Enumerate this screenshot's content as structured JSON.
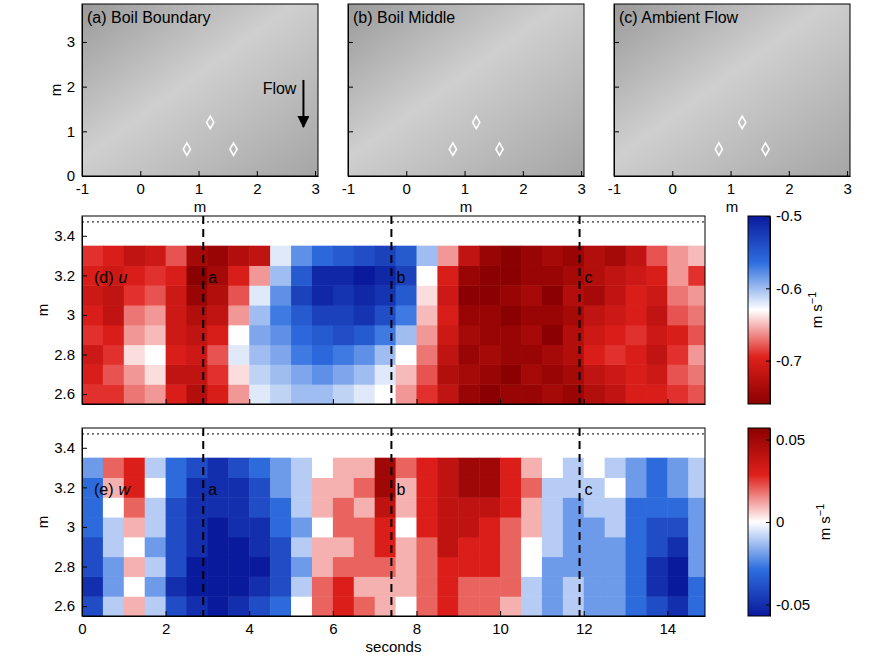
{
  "chart_data": [
    {
      "type": "image",
      "title": "(a) Boil Boundary",
      "xlabel": "m",
      "ylabel": "m",
      "xlim": [
        -1,
        3.05
      ],
      "xticks": [
        -1,
        0,
        1,
        2,
        3
      ],
      "ylim": [
        0,
        3.85
      ],
      "yticks": [
        0,
        1,
        2,
        3
      ],
      "points": {
        "x": [
          1.2,
          0.8,
          1.6
        ],
        "y": [
          1.2,
          0.6,
          0.6
        ],
        "marker": "diamond",
        "color": "#ffffff"
      },
      "annotations": [
        {
          "text": "Flow",
          "x": 2.8,
          "y_start": 2.15,
          "y_end": 1.1
        }
      ]
    },
    {
      "type": "image",
      "title": "(b) Boil Middle",
      "xlabel": "m",
      "xlim": [
        -1,
        3.05
      ],
      "xticks": [
        -1,
        0,
        1,
        2,
        3
      ],
      "ylim": [
        0,
        3.85
      ],
      "yticks": [
        0,
        1,
        2,
        3
      ],
      "tick_labels": "x",
      "points": {
        "x": [
          1.2,
          0.8,
          1.6
        ],
        "y": [
          1.2,
          0.6,
          0.6
        ],
        "marker": "diamond",
        "color": "#ffffff"
      }
    },
    {
      "type": "image",
      "title": "(c) Ambient Flow",
      "xlabel": "m",
      "xlim": [
        -1,
        3.05
      ],
      "xticks": [
        -1,
        0,
        1,
        2,
        3
      ],
      "ylim": [
        0,
        3.85
      ],
      "yticks": [
        0,
        1,
        2,
        3
      ],
      "tick_labels": "x",
      "points": {
        "x": [
          1.2,
          0.8,
          1.6
        ],
        "y": [
          1.2,
          0.6,
          0.6
        ],
        "marker": "diamond",
        "color": "#ffffff"
      }
    },
    {
      "type": "heatmap",
      "title": "(d)",
      "variable": "u",
      "ylabel": "m",
      "tick_labels": "y",
      "xlim": [
        0,
        14.9
      ],
      "xticks": [
        0,
        2,
        4,
        6,
        8,
        10,
        12,
        14
      ],
      "ylim": [
        2.55,
        3.5
      ],
      "yticks": [
        2.6,
        2.8,
        3,
        3.2,
        3.4
      ],
      "x": [
        0.25,
        0.75,
        1.25,
        1.75,
        2.25,
        2.75,
        3.25,
        3.75,
        4.25,
        4.75,
        5.25,
        5.75,
        6.25,
        6.75,
        7.25,
        7.75,
        8.25,
        8.75,
        9.25,
        9.75,
        10.25,
        10.75,
        11.25,
        11.75,
        12.25,
        12.75,
        13.25,
        13.75,
        14.25,
        14.75
      ],
      "y": [
        2.6,
        2.7,
        2.8,
        2.9,
        3.0,
        3.1,
        3.2,
        3.3
      ],
      "z": [
        [
          -0.69,
          -0.69,
          -0.67,
          -0.66,
          -0.7,
          -0.73,
          -0.7,
          -0.66,
          -0.62,
          -0.61,
          -0.6,
          -0.6,
          -0.61,
          -0.62,
          -0.63,
          -0.66,
          -0.69,
          -0.72,
          -0.75,
          -0.76,
          -0.75,
          -0.75,
          -0.74,
          -0.75,
          -0.73,
          -0.72,
          -0.7,
          -0.7,
          -0.69,
          -0.68
        ],
        [
          -0.7,
          -0.68,
          -0.66,
          -0.64,
          -0.72,
          -0.72,
          -0.69,
          -0.64,
          -0.61,
          -0.6,
          -0.59,
          -0.58,
          -0.59,
          -0.6,
          -0.62,
          -0.65,
          -0.68,
          -0.73,
          -0.74,
          -0.75,
          -0.76,
          -0.74,
          -0.75,
          -0.74,
          -0.72,
          -0.71,
          -0.7,
          -0.71,
          -0.68,
          -0.67
        ],
        [
          -0.71,
          -0.69,
          -0.64,
          -0.63,
          -0.7,
          -0.71,
          -0.68,
          -0.62,
          -0.6,
          -0.59,
          -0.57,
          -0.56,
          -0.57,
          -0.58,
          -0.6,
          -0.63,
          -0.67,
          -0.72,
          -0.75,
          -0.74,
          -0.75,
          -0.75,
          -0.74,
          -0.73,
          -0.7,
          -0.69,
          -0.7,
          -0.72,
          -0.69,
          -0.66
        ],
        [
          -0.69,
          -0.7,
          -0.66,
          -0.65,
          -0.71,
          -0.72,
          -0.7,
          -0.63,
          -0.59,
          -0.58,
          -0.56,
          -0.55,
          -0.54,
          -0.55,
          -0.57,
          -0.6,
          -0.66,
          -0.71,
          -0.74,
          -0.75,
          -0.75,
          -0.74,
          -0.76,
          -0.73,
          -0.71,
          -0.7,
          -0.69,
          -0.71,
          -0.7,
          -0.68
        ],
        [
          -0.7,
          -0.72,
          -0.67,
          -0.66,
          -0.71,
          -0.73,
          -0.72,
          -0.66,
          -0.6,
          -0.57,
          -0.55,
          -0.53,
          -0.53,
          -0.52,
          -0.54,
          -0.57,
          -0.65,
          -0.7,
          -0.75,
          -0.75,
          -0.76,
          -0.75,
          -0.75,
          -0.74,
          -0.72,
          -0.71,
          -0.7,
          -0.72,
          -0.68,
          -0.67
        ],
        [
          -0.71,
          -0.72,
          -0.69,
          -0.68,
          -0.71,
          -0.75,
          -0.73,
          -0.68,
          -0.62,
          -0.58,
          -0.53,
          -0.51,
          -0.52,
          -0.51,
          -0.52,
          -0.55,
          -0.64,
          -0.71,
          -0.76,
          -0.76,
          -0.75,
          -0.74,
          -0.76,
          -0.73,
          -0.74,
          -0.72,
          -0.7,
          -0.71,
          -0.67,
          -0.66
        ],
        [
          -0.7,
          -0.71,
          -0.7,
          -0.69,
          -0.7,
          -0.76,
          -0.74,
          -0.7,
          -0.66,
          -0.6,
          -0.55,
          -0.51,
          -0.51,
          -0.5,
          -0.51,
          -0.53,
          -0.63,
          -0.7,
          -0.75,
          -0.76,
          -0.76,
          -0.75,
          -0.75,
          -0.74,
          -0.73,
          -0.72,
          -0.71,
          -0.7,
          -0.66,
          -0.69
        ],
        [
          -0.69,
          -0.7,
          -0.72,
          -0.71,
          -0.68,
          -0.74,
          -0.75,
          -0.73,
          -0.72,
          -0.62,
          -0.58,
          -0.56,
          -0.55,
          -0.54,
          -0.53,
          -0.55,
          -0.6,
          -0.66,
          -0.72,
          -0.75,
          -0.76,
          -0.75,
          -0.74,
          -0.75,
          -0.73,
          -0.74,
          -0.72,
          -0.68,
          -0.66,
          -0.65
        ]
      ],
      "colors": [
        "#8b0000",
        "#e0201b",
        "#ffffff",
        "#2f6fe0",
        "#0a1a9c"
      ],
      "colorbar": {
        "lim": [
          -0.76,
          -0.5
        ],
        "ticks": [
          -0.5,
          -0.6,
          -0.7
        ],
        "label": "m s",
        "label_exponent": "−1"
      },
      "reference_line": {
        "y": 3.47,
        "line_style": "dotted"
      },
      "markers": {
        "x": [
          2.9,
          7.4,
          11.9
        ],
        "labels": [
          "a",
          "b",
          "c"
        ],
        "line_style": "dashed"
      }
    },
    {
      "type": "heatmap",
      "title": "(e)",
      "variable": "w",
      "xlabel": "seconds",
      "ylabel": "m",
      "xlim": [
        0,
        14.9
      ],
      "xticks": [
        0,
        2,
        4,
        6,
        8,
        10,
        12,
        14
      ],
      "ylim": [
        2.55,
        3.5
      ],
      "yticks": [
        2.6,
        2.8,
        3,
        3.2,
        3.4
      ],
      "x": [
        0.25,
        0.75,
        1.25,
        1.75,
        2.25,
        2.75,
        3.25,
        3.75,
        4.25,
        4.75,
        5.25,
        5.75,
        6.25,
        6.75,
        7.25,
        7.75,
        8.25,
        8.75,
        9.25,
        9.75,
        10.25,
        10.75,
        11.25,
        11.75,
        12.25,
        12.75,
        13.25,
        13.75,
        14.25,
        14.75
      ],
      "y": [
        2.6,
        2.7,
        2.8,
        2.9,
        3.0,
        3.1,
        3.2,
        3.3
      ],
      "z": [
        [
          -0.04,
          -0.01,
          0.01,
          -0.01,
          -0.04,
          -0.05,
          -0.06,
          -0.05,
          -0.04,
          -0.03,
          0.0,
          0.02,
          0.03,
          0.02,
          0.01,
          0.0,
          0.02,
          0.03,
          0.02,
          0.02,
          0.01,
          -0.01,
          -0.02,
          -0.01,
          -0.02,
          -0.02,
          -0.03,
          -0.04,
          -0.05,
          -0.03
        ],
        [
          -0.05,
          -0.02,
          0.0,
          -0.02,
          -0.05,
          -0.06,
          -0.06,
          -0.06,
          -0.05,
          -0.04,
          -0.01,
          0.02,
          0.03,
          0.01,
          0.01,
          0.01,
          0.02,
          0.03,
          0.02,
          0.02,
          0.02,
          -0.01,
          -0.02,
          -0.01,
          -0.02,
          -0.02,
          -0.03,
          -0.05,
          -0.06,
          -0.03
        ],
        [
          -0.04,
          -0.02,
          0.01,
          -0.01,
          -0.04,
          -0.06,
          -0.06,
          -0.06,
          -0.06,
          -0.04,
          -0.02,
          0.01,
          0.02,
          0.02,
          0.02,
          0.01,
          0.02,
          0.03,
          0.03,
          0.03,
          0.02,
          0.0,
          -0.02,
          -0.02,
          -0.02,
          -0.02,
          -0.03,
          -0.05,
          -0.06,
          -0.02
        ],
        [
          -0.04,
          -0.01,
          0.0,
          -0.02,
          -0.04,
          -0.05,
          -0.06,
          -0.06,
          -0.05,
          -0.04,
          -0.01,
          0.01,
          0.01,
          0.02,
          0.03,
          0.01,
          0.02,
          0.04,
          0.03,
          0.03,
          0.02,
          0.0,
          -0.01,
          -0.02,
          -0.02,
          -0.02,
          -0.03,
          -0.04,
          -0.05,
          -0.02
        ],
        [
          -0.03,
          -0.01,
          0.01,
          -0.01,
          -0.04,
          -0.05,
          -0.06,
          -0.05,
          -0.05,
          -0.03,
          -0.02,
          0.0,
          0.02,
          0.02,
          0.03,
          0.0,
          0.03,
          0.04,
          0.04,
          0.03,
          0.02,
          0.01,
          -0.01,
          -0.02,
          -0.02,
          -0.01,
          -0.03,
          -0.04,
          -0.04,
          -0.02
        ],
        [
          -0.03,
          0.0,
          0.02,
          -0.01,
          -0.04,
          -0.05,
          -0.05,
          -0.05,
          -0.04,
          -0.03,
          -0.01,
          0.01,
          0.02,
          0.01,
          0.04,
          0.01,
          0.03,
          0.04,
          0.04,
          0.04,
          0.03,
          0.01,
          -0.01,
          -0.02,
          -0.01,
          -0.01,
          -0.03,
          -0.03,
          -0.03,
          -0.02
        ],
        [
          -0.03,
          0.01,
          0.03,
          0.0,
          -0.03,
          -0.05,
          -0.05,
          -0.05,
          -0.04,
          -0.02,
          -0.01,
          0.01,
          0.01,
          0.02,
          0.05,
          0.01,
          0.03,
          0.04,
          0.05,
          0.05,
          0.03,
          0.02,
          -0.01,
          -0.01,
          -0.01,
          0.0,
          -0.02,
          -0.03,
          -0.02,
          -0.01
        ],
        [
          -0.02,
          0.02,
          0.03,
          -0.01,
          -0.03,
          -0.04,
          -0.05,
          -0.04,
          -0.03,
          -0.02,
          -0.01,
          0.0,
          0.01,
          0.01,
          0.05,
          0.02,
          0.03,
          0.04,
          0.05,
          0.05,
          0.03,
          0.01,
          0.0,
          -0.01,
          0.0,
          -0.01,
          -0.02,
          -0.03,
          -0.02,
          -0.01
        ]
      ],
      "colors": [
        "#0a1a9c",
        "#2f6fe0",
        "#ffffff",
        "#e0201b",
        "#8b0000"
      ],
      "colorbar": {
        "lim": [
          -0.057,
          0.057
        ],
        "ticks": [
          0.05,
          0,
          -0.05
        ],
        "label": "m s",
        "label_exponent": "−1"
      },
      "reference_line": {
        "y": 3.47,
        "line_style": "dotted"
      },
      "markers": {
        "x": [
          2.9,
          7.4,
          11.9
        ],
        "labels": [
          "a",
          "b",
          "c"
        ],
        "line_style": "dashed"
      }
    }
  ]
}
